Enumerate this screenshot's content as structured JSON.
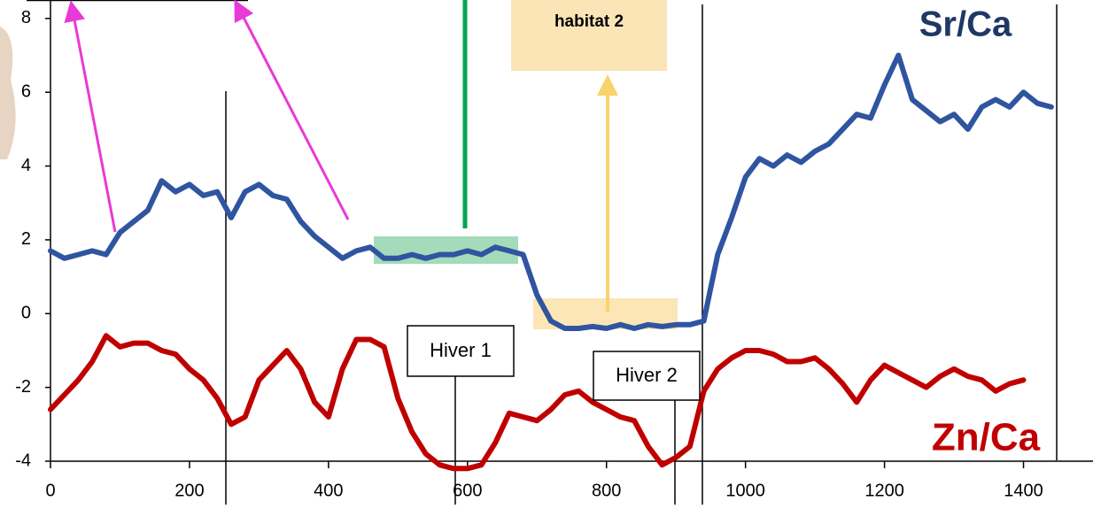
{
  "chart_data": {
    "type": "line",
    "x": [
      0,
      20,
      40,
      60,
      80,
      100,
      120,
      140,
      160,
      180,
      200,
      220,
      240,
      260,
      280,
      300,
      320,
      340,
      360,
      380,
      400,
      420,
      440,
      460,
      480,
      500,
      520,
      540,
      560,
      580,
      600,
      620,
      640,
      660,
      680,
      700,
      720,
      740,
      760,
      780,
      800,
      820,
      840,
      860,
      880,
      900,
      920,
      940,
      960,
      980,
      1000,
      1020,
      1040,
      1060,
      1080,
      1100,
      1120,
      1140,
      1160,
      1180,
      1200,
      1220,
      1240,
      1260,
      1280,
      1300,
      1320,
      1340,
      1360,
      1380,
      1400,
      1420,
      1440
    ],
    "series": [
      {
        "name": "Sr/Ca",
        "color": "#2f55a0",
        "values": [
          1.7,
          1.5,
          1.6,
          1.7,
          1.6,
          2.2,
          2.5,
          2.8,
          3.6,
          3.3,
          3.5,
          3.2,
          3.3,
          2.6,
          3.3,
          3.5,
          3.2,
          3.1,
          2.5,
          2.1,
          1.8,
          1.5,
          1.7,
          1.8,
          1.5,
          1.5,
          1.6,
          1.5,
          1.6,
          1.6,
          1.7,
          1.6,
          1.8,
          1.7,
          1.6,
          0.5,
          -0.2,
          -0.4,
          -0.4,
          -0.35,
          -0.4,
          -0.3,
          -0.4,
          -0.3,
          -0.35,
          -0.3,
          -0.3,
          -0.2,
          1.6,
          2.6,
          3.7,
          4.2,
          4.0,
          4.3,
          4.1,
          4.4,
          4.6,
          5.0,
          5.4,
          5.3,
          6.2,
          7.0,
          5.8,
          5.5,
          5.2,
          5.4,
          5.0,
          5.6,
          5.8,
          5.6,
          6.0,
          5.7,
          5.6
        ]
      },
      {
        "name": "Zn/Ca",
        "color": "#c00000",
        "values": [
          -2.6,
          -2.2,
          -1.8,
          -1.3,
          -0.6,
          -0.9,
          -0.8,
          -0.8,
          -1.0,
          -1.1,
          -1.5,
          -1.8,
          -2.3,
          -3.0,
          -2.8,
          -1.8,
          -1.4,
          -1.0,
          -1.5,
          -2.4,
          -2.8,
          -1.5,
          -0.7,
          -0.7,
          -0.9,
          -2.3,
          -3.2,
          -3.8,
          -4.1,
          -4.2,
          -4.2,
          -4.1,
          -3.5,
          -2.7,
          -2.8,
          -2.9,
          -2.6,
          -2.2,
          -2.1,
          -2.4,
          -2.6,
          -2.8,
          -2.9,
          -3.6,
          -4.1,
          -3.9,
          -3.6,
          -2.1,
          -1.5,
          -1.2,
          -1.0,
          -1.0,
          -1.1,
          -1.3,
          -1.3,
          -1.2,
          -1.5,
          -1.9,
          -2.4,
          -1.8,
          -1.4,
          -1.6,
          -1.8,
          -2.0,
          -1.7,
          -1.5,
          -1.7,
          -1.8,
          -2.1,
          -1.9,
          -1.8,
          null,
          null
        ]
      }
    ],
    "xlim": [
      0,
      1500
    ],
    "ylim": [
      -4,
      8.5
    ],
    "xticks": [
      0,
      200,
      400,
      600,
      800,
      1000,
      1200,
      1400
    ],
    "yticks": [
      -4,
      -2,
      0,
      2,
      4,
      6,
      8
    ],
    "annotations": [
      "habitat 2",
      "Hiver 1",
      "Hiver 2"
    ]
  }
}
